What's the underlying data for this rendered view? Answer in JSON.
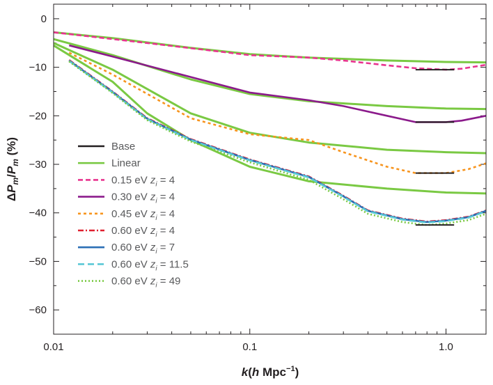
{
  "chart_data": {
    "type": "line",
    "x_scale": "log",
    "xlim": [
      0.01,
      1.6
    ],
    "ylim": [
      -65,
      3
    ],
    "x_ticks": [
      {
        "value": 0.01,
        "label": "0.01"
      },
      {
        "value": 0.1,
        "label": "0.1"
      },
      {
        "value": 1.0,
        "label": "1.0"
      }
    ],
    "y_ticks": [
      {
        "value": 0,
        "label": "0"
      },
      {
        "value": -10,
        "label": "−10"
      },
      {
        "value": -20,
        "label": "−20"
      },
      {
        "value": -30,
        "label": "−30"
      },
      {
        "value": -40,
        "label": "−40"
      },
      {
        "value": -50,
        "label": "−50"
      },
      {
        "value": -60,
        "label": "−60"
      }
    ],
    "xlabel": {
      "main": "k",
      "unit_prefix": "(",
      "unit_h": "h",
      "unit_mpc": " Mpc",
      "unit_sup": "−1",
      "unit_suffix": ")"
    },
    "ylabel": {
      "delta": "Δ",
      "p": "P",
      "sub": "m",
      "slash": "/",
      "unit": " (%)"
    },
    "legend_position": "lower-left",
    "legend": [
      {
        "label": "Base",
        "z_label": "",
        "z_value": "",
        "color": "#231f20",
        "dash": ""
      },
      {
        "label": "Linear",
        "z_label": "",
        "z_value": "",
        "color": "#7ac943",
        "dash": ""
      },
      {
        "label": "0.15 eV ",
        "z_label": "z",
        "z_value": " = 4",
        "color": "#e8348f",
        "dash": "7,4"
      },
      {
        "label": "0.30 eV ",
        "z_label": "z",
        "z_value": " = 4",
        "color": "#8b1a8b",
        "dash": ""
      },
      {
        "label": "0.45 eV ",
        "z_label": "z",
        "z_value": " = 4",
        "color": "#f7941d",
        "dash": "4,4"
      },
      {
        "label": "0.60 eV ",
        "z_label": "z",
        "z_value": " = 4",
        "color": "#e0202f",
        "dash": "8,3,2,3"
      },
      {
        "label": "0.60 eV ",
        "z_label": "z",
        "z_value": " = 7",
        "color": "#2b6fb5",
        "dash": ""
      },
      {
        "label": "0.60 eV ",
        "z_label": "z",
        "z_value": " = 11.5",
        "color": "#5bc8d6",
        "dash": "9,5"
      },
      {
        "label": "0.60 eV ",
        "z_label": "z",
        "z_value": " = 49",
        "color": "#7ac943",
        "dash": "2,3"
      }
    ],
    "linear_series": [
      {
        "name": "Linear 0.15 eV",
        "x": [
          0.01,
          0.02,
          0.05,
          0.1,
          0.2,
          0.5,
          1.0,
          1.6
        ],
        "y": [
          -2.8,
          -4.0,
          -6.0,
          -7.3,
          -8.0,
          -8.6,
          -8.9,
          -9.0
        ]
      },
      {
        "name": "Linear 0.30 eV",
        "x": [
          0.01,
          0.02,
          0.05,
          0.1,
          0.2,
          0.5,
          1.0,
          1.6
        ],
        "y": [
          -4.2,
          -7.5,
          -12.5,
          -15.5,
          -17.0,
          -18.0,
          -18.5,
          -18.6
        ]
      },
      {
        "name": "Linear 0.45 eV",
        "x": [
          0.01,
          0.02,
          0.05,
          0.1,
          0.2,
          0.5,
          1.0,
          1.6
        ],
        "y": [
          -5.0,
          -10.5,
          -19.5,
          -23.5,
          -25.5,
          -27.0,
          -27.5,
          -27.7
        ]
      },
      {
        "name": "Linear 0.60 eV",
        "x": [
          0.01,
          0.02,
          0.03,
          0.05,
          0.1,
          0.2,
          0.5,
          1.0,
          1.6
        ],
        "y": [
          -5.5,
          -13.0,
          -19.5,
          -25.0,
          -30.5,
          -33.5,
          -35.0,
          -35.8,
          -36.0
        ]
      }
    ],
    "series": [
      {
        "name": "0.15 eV z_i = 4",
        "x": [
          0.01,
          0.03,
          0.1,
          0.2,
          0.3,
          0.5,
          0.7,
          1.0,
          1.2,
          1.6
        ],
        "y": [
          -2.8,
          -5.0,
          -7.5,
          -8.0,
          -8.6,
          -9.6,
          -10.2,
          -10.5,
          -10.3,
          -9.5
        ]
      },
      {
        "name": "0.30 eV z_i = 4",
        "x": [
          0.012,
          0.02,
          0.05,
          0.1,
          0.2,
          0.3,
          0.5,
          0.7,
          1.0,
          1.2,
          1.6
        ],
        "y": [
          -5.5,
          -7.8,
          -12.0,
          -15.2,
          -16.8,
          -18.0,
          -20.0,
          -21.3,
          -21.3,
          -21.0,
          -20.0
        ]
      },
      {
        "name": "0.45 eV z_i = 4",
        "x": [
          0.012,
          0.02,
          0.05,
          0.1,
          0.2,
          0.3,
          0.5,
          0.7,
          1.0,
          1.3,
          1.6
        ],
        "y": [
          -7.0,
          -11.5,
          -20.5,
          -23.8,
          -25.0,
          -27.5,
          -30.5,
          -31.8,
          -31.8,
          -31.0,
          -29.8
        ]
      },
      {
        "name": "0.60 eV z_i = 4",
        "x": [
          0.012,
          0.02,
          0.03,
          0.05,
          0.1,
          0.2,
          0.3,
          0.4,
          0.6,
          0.8,
          1.0,
          1.3,
          1.6
        ],
        "y": [
          -8.5,
          -15.0,
          -20.5,
          -24.8,
          -29.0,
          -32.5,
          -36.5,
          -39.5,
          -41.2,
          -41.8,
          -41.5,
          -40.8,
          -39.5
        ]
      },
      {
        "name": "0.60 eV z_i = 7",
        "x": [
          0.012,
          0.02,
          0.03,
          0.05,
          0.1,
          0.2,
          0.3,
          0.4,
          0.6,
          0.8,
          1.0,
          1.3,
          1.6
        ],
        "y": [
          -8.6,
          -15.1,
          -20.6,
          -24.9,
          -29.1,
          -32.6,
          -36.6,
          -39.6,
          -41.3,
          -41.9,
          -41.6,
          -40.9,
          -39.6
        ]
      },
      {
        "name": "0.60 eV z_i = 11.5",
        "x": [
          0.012,
          0.02,
          0.03,
          0.05,
          0.1,
          0.2,
          0.3,
          0.4,
          0.6,
          0.8,
          1.0,
          1.3,
          1.6
        ],
        "y": [
          -8.7,
          -15.2,
          -20.7,
          -25.0,
          -29.2,
          -32.7,
          -36.7,
          -39.7,
          -41.4,
          -42.0,
          -41.7,
          -41.0,
          -39.7
        ]
      },
      {
        "name": "0.60 eV z_i = 49",
        "x": [
          0.012,
          0.02,
          0.03,
          0.05,
          0.1,
          0.2,
          0.3,
          0.4,
          0.6,
          0.8,
          1.0,
          1.3,
          1.6
        ],
        "y": [
          -8.8,
          -15.3,
          -20.9,
          -25.3,
          -29.6,
          -33.2,
          -37.2,
          -40.2,
          -41.9,
          -42.5,
          -42.2,
          -41.5,
          -40.2
        ]
      }
    ],
    "base_segments": [
      {
        "x": [
          0.7,
          1.1
        ],
        "y": -10.5
      },
      {
        "x": [
          0.7,
          1.1
        ],
        "y": -21.3
      },
      {
        "x": [
          0.7,
          1.1
        ],
        "y": -31.8
      },
      {
        "x": [
          0.7,
          1.1
        ],
        "y": -42.5
      }
    ]
  }
}
